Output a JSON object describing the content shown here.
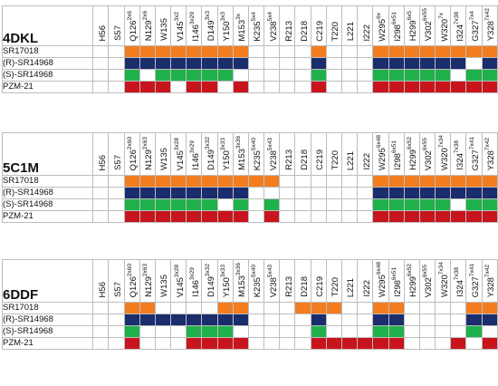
{
  "ligands": [
    "SR17018",
    "(R)-SR14968",
    "(S)-SR14968",
    "PZM-21"
  ],
  "colors": {
    "SR17018": "#f47d20",
    "(R)-SR14968": "#1a2d6d",
    "(S)-SR14968": "#1fb14b",
    "PZM-21": "#c8151d"
  },
  "panels": [
    {
      "title": "4DKL",
      "residues": [
        {
          "name": "H56",
          "sup": ""
        },
        {
          "name": "S57",
          "sup": ""
        },
        {
          "name": "Q126",
          "sup": "2x6"
        },
        {
          "name": "N129",
          "sup": "2x6"
        },
        {
          "name": "W135",
          "sup": ""
        },
        {
          "name": "V145",
          "sup": "3x2"
        },
        {
          "name": "I146",
          "sup": "3x29"
        },
        {
          "name": "D149",
          "sup": "3x3"
        },
        {
          "name": "Y150",
          "sup": "3x3"
        },
        {
          "name": "M153",
          "sup": "3x"
        },
        {
          "name": "K235",
          "sup": "5x4"
        },
        {
          "name": "V238",
          "sup": "5x4"
        },
        {
          "name": "R213",
          "sup": ""
        },
        {
          "name": "D218",
          "sup": ""
        },
        {
          "name": "C219",
          "sup": ""
        },
        {
          "name": "T220",
          "sup": ""
        },
        {
          "name": "L221",
          "sup": ""
        },
        {
          "name": "I222",
          "sup": ""
        },
        {
          "name": "W295",
          "sup": "6x"
        },
        {
          "name": "I298",
          "sup": "6x51"
        },
        {
          "name": "H299",
          "sup": "6x5"
        },
        {
          "name": "V302",
          "sup": "6x55"
        },
        {
          "name": "W320",
          "sup": "7x"
        },
        {
          "name": "I324",
          "sup": "7x38"
        },
        {
          "name": "G327",
          "sup": "7x4"
        },
        {
          "name": "Y328",
          "sup": "7x42"
        }
      ],
      "fill": [
        [
          0,
          0,
          1,
          1,
          1,
          1,
          1,
          1,
          1,
          1,
          0,
          0,
          0,
          0,
          1,
          0,
          0,
          0,
          1,
          1,
          1,
          1,
          1,
          1,
          1,
          1
        ],
        [
          0,
          0,
          1,
          1,
          1,
          1,
          1,
          1,
          1,
          1,
          0,
          0,
          0,
          0,
          1,
          0,
          0,
          0,
          1,
          1,
          1,
          1,
          1,
          1,
          0,
          1
        ],
        [
          0,
          0,
          1,
          0,
          1,
          1,
          1,
          1,
          1,
          0,
          0,
          0,
          0,
          0,
          1,
          0,
          0,
          0,
          1,
          1,
          1,
          1,
          1,
          0,
          1,
          1
        ],
        [
          0,
          0,
          1,
          1,
          1,
          0,
          1,
          1,
          0,
          1,
          0,
          0,
          0,
          0,
          1,
          0,
          0,
          0,
          1,
          1,
          1,
          1,
          1,
          1,
          1,
          1
        ]
      ]
    },
    {
      "title": "5C1M",
      "residues": [
        {
          "name": "H56",
          "sup": ""
        },
        {
          "name": "S57",
          "sup": ""
        },
        {
          "name": "Q126",
          "sup": "2x60"
        },
        {
          "name": "N129",
          "sup": "2x63"
        },
        {
          "name": "W135",
          "sup": ""
        },
        {
          "name": "V145",
          "sup": "3x28"
        },
        {
          "name": "I146",
          "sup": "3x29"
        },
        {
          "name": "D149",
          "sup": "3x32"
        },
        {
          "name": "Y150",
          "sup": "3x33"
        },
        {
          "name": "M153",
          "sup": "3x36"
        },
        {
          "name": "K235",
          "sup": "5x40"
        },
        {
          "name": "V238",
          "sup": "5x43"
        },
        {
          "name": "R213",
          "sup": ""
        },
        {
          "name": "D218",
          "sup": ""
        },
        {
          "name": "C219",
          "sup": ""
        },
        {
          "name": "T220",
          "sup": ""
        },
        {
          "name": "L221",
          "sup": ""
        },
        {
          "name": "I222",
          "sup": ""
        },
        {
          "name": "W295",
          "sup": "6x48"
        },
        {
          "name": "I298",
          "sup": "6x51"
        },
        {
          "name": "H299",
          "sup": "6x52"
        },
        {
          "name": "V302",
          "sup": "6x55"
        },
        {
          "name": "W320",
          "sup": "7x34"
        },
        {
          "name": "I324",
          "sup": "7x38"
        },
        {
          "name": "G327",
          "sup": "7x41"
        },
        {
          "name": "Y328",
          "sup": "7x42"
        }
      ],
      "fill": [
        [
          0,
          0,
          1,
          1,
          1,
          1,
          1,
          1,
          1,
          1,
          1,
          1,
          0,
          0,
          0,
          0,
          0,
          0,
          1,
          1,
          1,
          1,
          1,
          1,
          1,
          1
        ],
        [
          0,
          0,
          1,
          1,
          1,
          1,
          1,
          1,
          1,
          1,
          0,
          0,
          0,
          0,
          0,
          0,
          0,
          0,
          1,
          1,
          1,
          1,
          1,
          1,
          1,
          1
        ],
        [
          0,
          0,
          1,
          1,
          1,
          1,
          1,
          1,
          0,
          1,
          0,
          1,
          0,
          0,
          0,
          0,
          0,
          0,
          1,
          1,
          1,
          1,
          1,
          0,
          1,
          1
        ],
        [
          0,
          0,
          1,
          1,
          1,
          1,
          1,
          1,
          1,
          1,
          0,
          1,
          0,
          0,
          0,
          0,
          0,
          0,
          1,
          1,
          1,
          1,
          1,
          1,
          1,
          1
        ]
      ]
    },
    {
      "title": "6DDF",
      "residues": [
        {
          "name": "H56",
          "sup": ""
        },
        {
          "name": "S57",
          "sup": ""
        },
        {
          "name": "Q126",
          "sup": "2x60"
        },
        {
          "name": "N129",
          "sup": "2x63"
        },
        {
          "name": "W135",
          "sup": ""
        },
        {
          "name": "V145",
          "sup": "3x28"
        },
        {
          "name": "I146",
          "sup": "3x29"
        },
        {
          "name": "D149",
          "sup": "3x32"
        },
        {
          "name": "Y150",
          "sup": "3x33"
        },
        {
          "name": "M153",
          "sup": "3x36"
        },
        {
          "name": "K235",
          "sup": "5x40"
        },
        {
          "name": "V238",
          "sup": "5x43"
        },
        {
          "name": "R213",
          "sup": ""
        },
        {
          "name": "D218",
          "sup": ""
        },
        {
          "name": "C219",
          "sup": ""
        },
        {
          "name": "T220",
          "sup": ""
        },
        {
          "name": "L221",
          "sup": ""
        },
        {
          "name": "I222",
          "sup": ""
        },
        {
          "name": "W295",
          "sup": "6x48"
        },
        {
          "name": "I298",
          "sup": "6x51"
        },
        {
          "name": "H299",
          "sup": "6x52"
        },
        {
          "name": "V302",
          "sup": "6x55"
        },
        {
          "name": "W320",
          "sup": "7x34"
        },
        {
          "name": "I324",
          "sup": "7x38"
        },
        {
          "name": "G327",
          "sup": "7x41"
        },
        {
          "name": "Y328",
          "sup": "7x42"
        }
      ],
      "fill": [
        [
          0,
          0,
          1,
          1,
          0,
          0,
          0,
          0,
          1,
          1,
          0,
          0,
          0,
          1,
          1,
          1,
          0,
          0,
          1,
          1,
          0,
          0,
          0,
          0,
          1,
          1
        ],
        [
          0,
          0,
          1,
          1,
          1,
          1,
          1,
          1,
          1,
          1,
          0,
          0,
          0,
          0,
          1,
          0,
          0,
          0,
          1,
          1,
          0,
          0,
          0,
          0,
          1,
          1
        ],
        [
          0,
          0,
          1,
          0,
          0,
          0,
          1,
          1,
          1,
          0,
          0,
          0,
          0,
          0,
          1,
          0,
          0,
          0,
          1,
          1,
          0,
          0,
          0,
          0,
          1,
          0
        ],
        [
          0,
          0,
          1,
          0,
          0,
          0,
          1,
          1,
          1,
          1,
          0,
          0,
          0,
          0,
          1,
          1,
          1,
          1,
          1,
          1,
          0,
          0,
          0,
          1,
          0,
          1
        ]
      ]
    }
  ]
}
